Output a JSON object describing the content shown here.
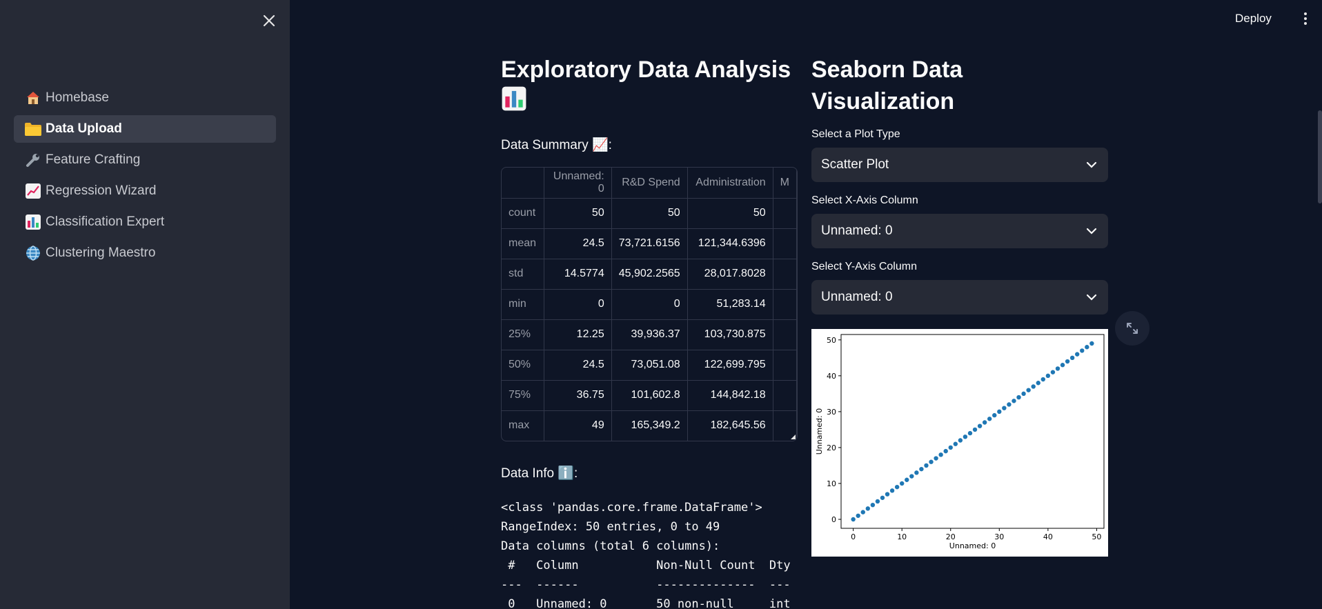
{
  "header": {
    "deploy_label": "Deploy"
  },
  "sidebar": {
    "items": [
      {
        "label": "Homebase",
        "icon": "house-icon",
        "active": false
      },
      {
        "label": "Data Upload",
        "icon": "folder-icon",
        "active": true
      },
      {
        "label": "Feature Crafting",
        "icon": "wrench-icon",
        "active": false
      },
      {
        "label": "Regression Wizard",
        "icon": "chart-increasing-icon",
        "active": false
      },
      {
        "label": "Classification Expert",
        "icon": "bar-chart-icon",
        "active": false
      },
      {
        "label": "Clustering Maestro",
        "icon": "globe-icon",
        "active": false
      }
    ]
  },
  "eda": {
    "title": "Exploratory Data Analysis",
    "summary_heading": "Data Summary 📈:",
    "columns": [
      "",
      "Unnamed: 0",
      "R&D Spend",
      "Administration",
      "M"
    ],
    "rows": [
      [
        "count",
        "50",
        "50",
        "50"
      ],
      [
        "mean",
        "24.5",
        "73,721.6156",
        "121,344.6396"
      ],
      [
        "std",
        "14.5774",
        "45,902.2565",
        "28,017.8028"
      ],
      [
        "min",
        "0",
        "0",
        "51,283.14"
      ],
      [
        "25%",
        "12.25",
        "39,936.37",
        "103,730.875"
      ],
      [
        "50%",
        "24.5",
        "73,051.08",
        "122,699.795"
      ],
      [
        "75%",
        "36.75",
        "101,602.8",
        "144,842.18"
      ],
      [
        "max",
        "49",
        "165,349.2",
        "182,645.56"
      ]
    ],
    "info_heading": "Data Info ℹ️:",
    "info_lines": [
      "<class 'pandas.core.frame.DataFrame'>",
      "RangeIndex: 50 entries, 0 to 49",
      "Data columns (total 6 columns):",
      " #   Column           Non-Null Count  Dty",
      "---  ------           --------------  ---",
      " 0   Unnamed: 0       50 non-null     int"
    ]
  },
  "viz": {
    "title": "Seaborn Data Visualization",
    "plot_type_label": "Select a Plot Type",
    "plot_type_value": "Scatter Plot",
    "x_label": "Select X-Axis Column",
    "x_value": "Unnamed: 0",
    "y_label": "Select Y-Axis Column",
    "y_value": "Unnamed: 0"
  },
  "chart_data": {
    "type": "scatter",
    "x": [
      0,
      1,
      2,
      3,
      4,
      5,
      6,
      7,
      8,
      9,
      10,
      11,
      12,
      13,
      14,
      15,
      16,
      17,
      18,
      19,
      20,
      21,
      22,
      23,
      24,
      25,
      26,
      27,
      28,
      29,
      30,
      31,
      32,
      33,
      34,
      35,
      36,
      37,
      38,
      39,
      40,
      41,
      42,
      43,
      44,
      45,
      46,
      47,
      48,
      49
    ],
    "y": [
      0,
      1,
      2,
      3,
      4,
      5,
      6,
      7,
      8,
      9,
      10,
      11,
      12,
      13,
      14,
      15,
      16,
      17,
      18,
      19,
      20,
      21,
      22,
      23,
      24,
      25,
      26,
      27,
      28,
      29,
      30,
      31,
      32,
      33,
      34,
      35,
      36,
      37,
      38,
      39,
      40,
      41,
      42,
      43,
      44,
      45,
      46,
      47,
      48,
      49
    ],
    "xlabel": "Unnamed: 0",
    "ylabel": "Unnamed: 0",
    "xlim": [
      -2.5,
      51.5
    ],
    "ylim": [
      -2.5,
      51.5
    ],
    "xticks": [
      0,
      10,
      20,
      30,
      40,
      50
    ],
    "yticks": [
      0,
      10,
      20,
      30,
      40,
      50
    ],
    "point_color": "#1f77b4",
    "grid": false
  }
}
